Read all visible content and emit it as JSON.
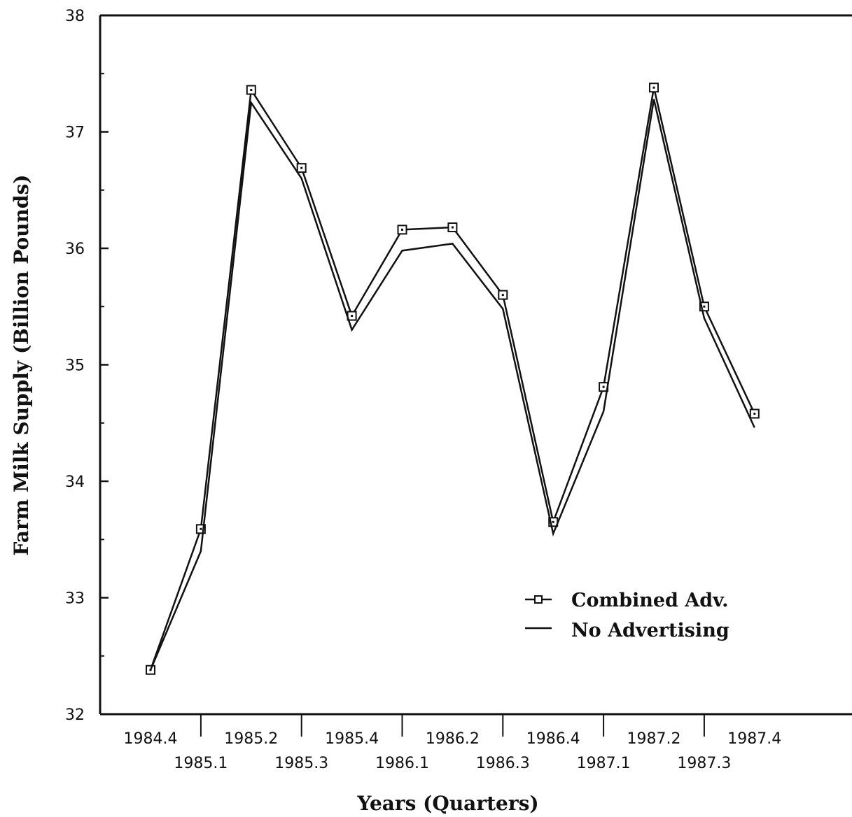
{
  "chart_data": {
    "type": "line",
    "xlabel": "Years (Quarters)",
    "ylabel": "Farm Milk Supply (Billion Pounds)",
    "ylim": [
      32,
      38
    ],
    "yticks": [
      "32",
      "33",
      "34",
      "35",
      "36",
      "37",
      "38"
    ],
    "categories": [
      "1984.4",
      "1985.1",
      "1985.2",
      "1985.3",
      "1985.4",
      "1986.1",
      "1986.2",
      "1986.3",
      "1986.4",
      "1987.1",
      "1987.2",
      "1987.3",
      "1987.4"
    ],
    "series": [
      {
        "name": "Combined Adv.",
        "marker": "square",
        "values": [
          32.38,
          33.59,
          37.36,
          36.69,
          35.42,
          36.16,
          36.18,
          35.6,
          33.65,
          34.81,
          37.38,
          35.5,
          34.58
        ]
      },
      {
        "name": "No Advertising",
        "marker": "none",
        "values": [
          32.38,
          33.4,
          37.25,
          36.6,
          35.3,
          35.98,
          36.04,
          35.48,
          33.55,
          34.6,
          37.28,
          35.4,
          34.46
        ]
      }
    ],
    "legend_position": "lower-right",
    "grid": false
  },
  "colors": {
    "line": "#111111",
    "background": "#ffffff"
  }
}
